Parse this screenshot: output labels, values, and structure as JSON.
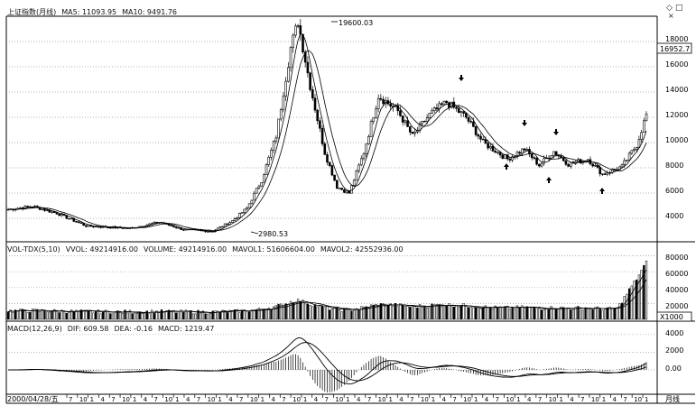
{
  "main_panel": {
    "title": "上证指数(月线)",
    "ma5": "MA5: 11093.95",
    "ma10": "MA10: 9491.76",
    "peak_label": "19600.03",
    "low_label": "2980.53",
    "current_price": "16952.7",
    "y_ticks": [
      "18000",
      "16000",
      "14000",
      "12000",
      "10000",
      "8000",
      "6000",
      "4000"
    ]
  },
  "volume_panel": {
    "title": "VOL-TDX(5,10)",
    "vvol": "VVOL: 49214916.00",
    "volume": "VOLUME: 49214916.00",
    "mavol1": "MAVOL1: 51606604.00",
    "mavol2": "MAVOL2: 42552936.00",
    "y_ticks": [
      "80000",
      "60000",
      "40000",
      "20000"
    ],
    "multiplier": "X1000"
  },
  "macd_panel": {
    "title": "MACD(12,26,9)",
    "dif": "DIF: 609.58",
    "dea": "DEA: -0.16",
    "macd": "MACD: 1219.47",
    "y_ticks": [
      "4000",
      "2000",
      "0.00"
    ]
  },
  "x_axis": {
    "start_date": "2000/04/28/五",
    "ticks": [
      "7",
      "10",
      "1",
      "4",
      "7",
      "10",
      "1",
      "4",
      "7",
      "10",
      "1",
      "4",
      "7",
      "10",
      "1",
      "4",
      "7",
      "10",
      "1",
      "4",
      "7",
      "10",
      "1",
      "4",
      "7",
      "10",
      "1",
      "4",
      "7",
      "10",
      "1",
      "4",
      "7",
      "10",
      "1",
      "4",
      "7",
      "10",
      "1",
      "4",
      "7",
      "10",
      "1",
      "4",
      "7",
      "10",
      "1",
      "4",
      "7",
      "10",
      "1",
      "4",
      "7",
      "10",
      "1"
    ],
    "period": "月线"
  },
  "controls": {
    "diamond": "◇",
    "square": "□",
    "close": "×"
  },
  "colors": {
    "line": "#000000",
    "grid": "#999999",
    "bg": "#ffffff"
  }
}
